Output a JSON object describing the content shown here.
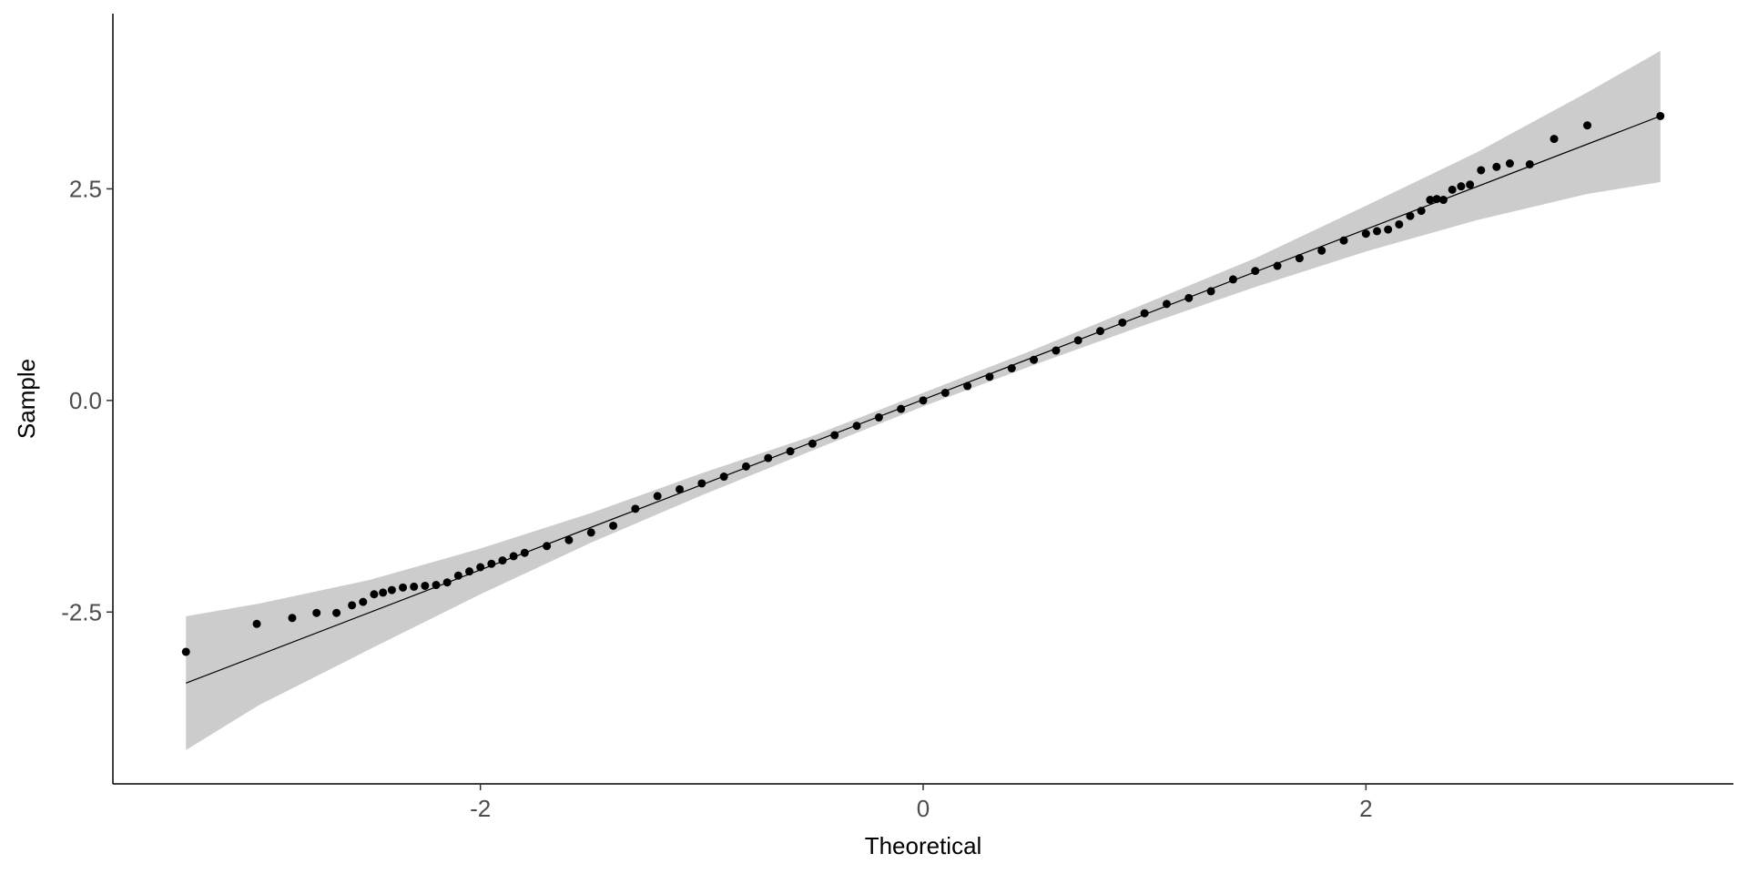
{
  "chart_data": {
    "type": "scatter",
    "x_label": "Theoretical",
    "y_label": "Sample",
    "xlim": [
      -3.66,
      3.66
    ],
    "ylim": [
      -4.53,
      4.57
    ],
    "xticks": [
      -2,
      0,
      2
    ],
    "yticks": [
      -2.5,
      {
        "value": 0,
        "label": "0.0"
      },
      2.5
    ],
    "grid": false,
    "color": "#000000",
    "band_color": "#cccccc",
    "x": [
      -3.33,
      -3.01,
      -2.85,
      -2.74,
      -2.65,
      -2.58,
      -2.53,
      -2.48,
      -2.44,
      -2.4,
      -2.35,
      -2.3,
      -2.25,
      -2.2,
      -2.15,
      -2.1,
      -2.05,
      -2.0,
      -1.95,
      -1.9,
      -1.85,
      -1.8,
      -1.7,
      -1.6,
      -1.5,
      -1.4,
      -1.3,
      -1.2,
      -1.1,
      -1.0,
      -0.9,
      -0.8,
      -0.7,
      -0.6,
      -0.5,
      -0.4,
      -0.3,
      -0.2,
      -0.1,
      0.0,
      0.1,
      0.2,
      0.3,
      0.4,
      0.5,
      0.6,
      0.7,
      0.8,
      0.9,
      1.0,
      1.1,
      1.2,
      1.3,
      1.4,
      1.5,
      1.6,
      1.7,
      1.8,
      1.9,
      2.0,
      2.05,
      2.1,
      2.15,
      2.2,
      2.25,
      2.29,
      2.32,
      2.35,
      2.39,
      2.43,
      2.47,
      2.52,
      2.59,
      2.65,
      2.74,
      2.85,
      3.0,
      3.33
    ],
    "values": [
      -2.97,
      -2.64,
      -2.57,
      -2.51,
      -2.51,
      -2.42,
      -2.38,
      -2.29,
      -2.27,
      -2.24,
      -2.21,
      -2.2,
      -2.19,
      -2.18,
      -2.15,
      -2.07,
      -2.02,
      -1.97,
      -1.93,
      -1.89,
      -1.84,
      -1.8,
      -1.72,
      -1.65,
      -1.56,
      -1.48,
      -1.28,
      -1.13,
      -1.05,
      -0.98,
      -0.9,
      -0.78,
      -0.68,
      -0.6,
      -0.51,
      -0.41,
      -0.3,
      -0.2,
      -0.1,
      0.0,
      0.09,
      0.17,
      0.28,
      0.38,
      0.48,
      0.59,
      0.71,
      0.82,
      0.92,
      1.03,
      1.14,
      1.21,
      1.29,
      1.43,
      1.53,
      1.59,
      1.68,
      1.77,
      1.89,
      1.97,
      2.0,
      2.02,
      2.08,
      2.18,
      2.24,
      2.37,
      2.38,
      2.37,
      2.49,
      2.53,
      2.55,
      2.72,
      2.76,
      2.8,
      2.79,
      3.09,
      3.25,
      3.36
    ],
    "reference_line": {
      "x": [
        -3.33,
        3.33
      ],
      "y": [
        -3.34,
        3.36
      ]
    },
    "envelope": {
      "x": [
        -3.33,
        -3.0,
        -2.5,
        -2.0,
        -1.5,
        -1.0,
        -0.5,
        0.0,
        0.5,
        1.0,
        1.5,
        2.0,
        2.5,
        3.0,
        3.33
      ],
      "lower": [
        -4.13,
        -3.6,
        -2.94,
        -2.29,
        -1.68,
        -1.12,
        -0.59,
        -0.07,
        0.42,
        0.89,
        1.34,
        1.76,
        2.13,
        2.44,
        2.58
      ],
      "upper": [
        -2.55,
        -2.4,
        -2.12,
        -1.75,
        -1.33,
        -0.86,
        -0.42,
        0.09,
        0.6,
        1.14,
        1.68,
        2.3,
        2.93,
        3.64,
        4.13
      ]
    }
  }
}
